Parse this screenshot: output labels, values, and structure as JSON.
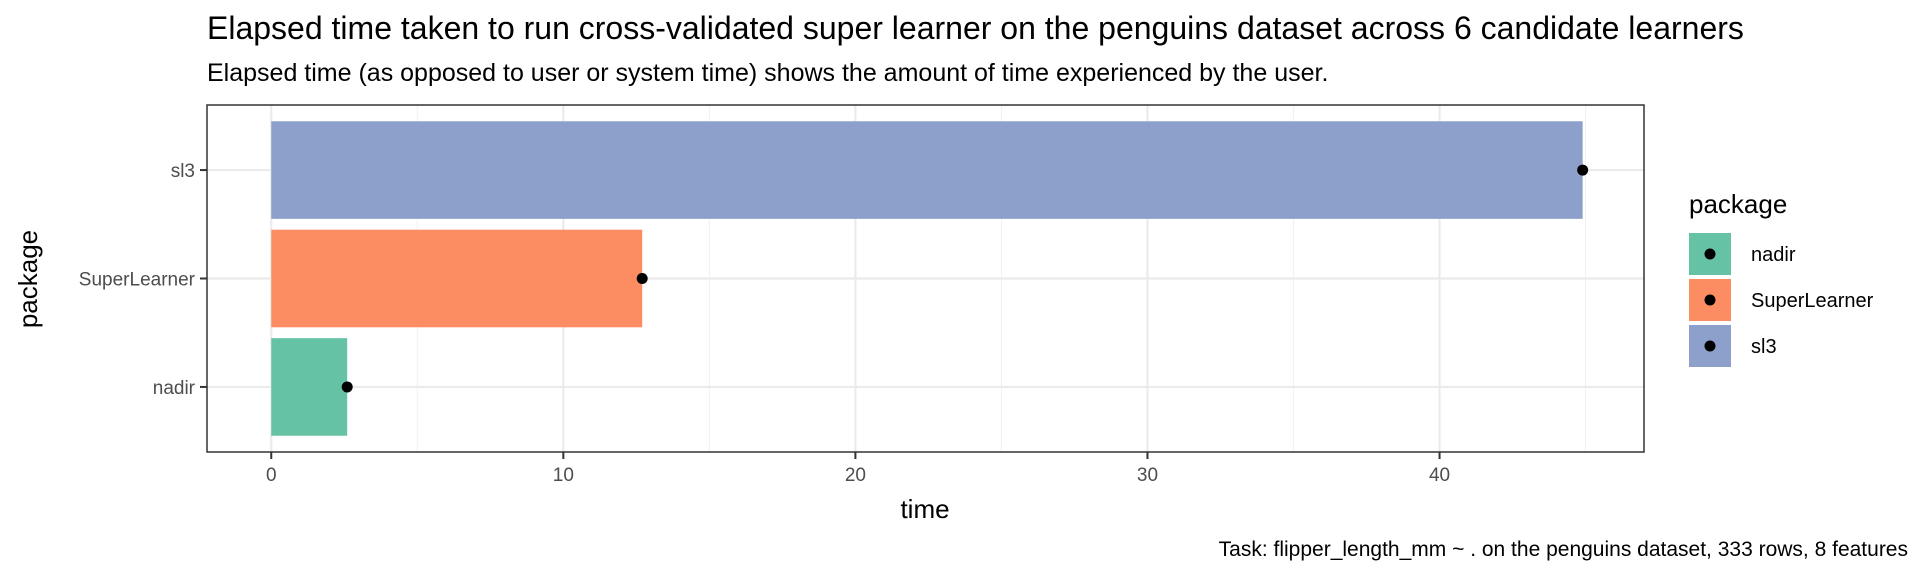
{
  "chart_data": {
    "type": "bar",
    "title": "Elapsed time taken to run cross-validated super learner on the penguins dataset across 6 candidate learners",
    "subtitle": "Elapsed time (as opposed to user or system time) shows the amount of time experienced by the user.",
    "caption": "Task: flipper_length_mm ~ . on the penguins dataset, 333 rows, 8 features",
    "orientation": "horizontal",
    "xlabel": "time",
    "ylabel": "package",
    "xlim": [
      -2.2,
      47.0
    ],
    "x_ticks": [
      0,
      10,
      20,
      30,
      40
    ],
    "x_tick_labels": [
      "0",
      "10",
      "20",
      "30",
      "40"
    ],
    "categories": [
      "nadir",
      "SuperLearner",
      "sl3"
    ],
    "values": [
      2.6,
      12.7,
      44.9
    ],
    "colors": [
      "#66c2a5",
      "#fc8d62",
      "#8da0cb"
    ],
    "point_color": "#000000",
    "grid": true,
    "legend": {
      "title": "package",
      "position": "right",
      "entries": [
        "nadir",
        "SuperLearner",
        "sl3"
      ]
    }
  }
}
